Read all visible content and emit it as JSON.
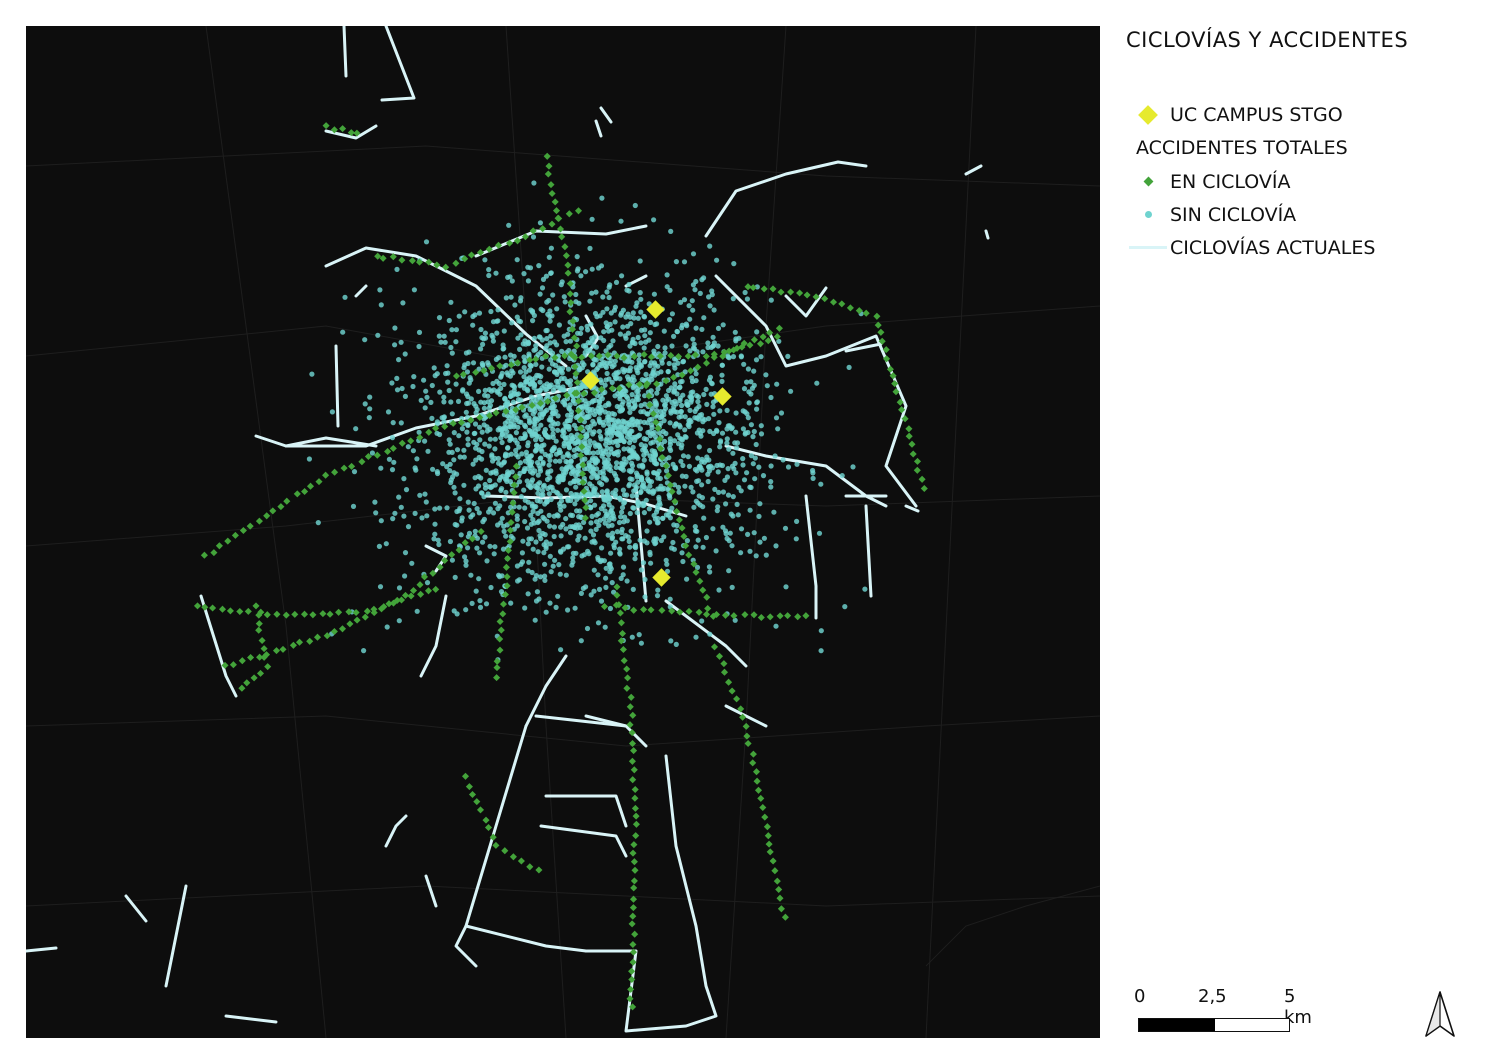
{
  "title": "CICLOVÍAS Y ACCIDENTES",
  "legend": {
    "campus": {
      "label": "UC CAMPUS STGO",
      "color": "#e6ea2e",
      "icon": "yellow-diamond-icon"
    },
    "group_heading": "ACCIDENTES TOTALES",
    "on_bikeway": {
      "label": "EN CICLOVÍA",
      "color": "#43a33a",
      "icon": "green-diamond-icon"
    },
    "off_bikeway": {
      "label": "SIN CICLOVÍA",
      "color": "#6fd3cf",
      "icon": "cyan-dot-icon"
    },
    "bikeways": {
      "label": "CICLOVÍAS ACTUALES",
      "color": "#d9f4f7",
      "icon": "white-line-icon"
    }
  },
  "scale": {
    "labels": [
      "0",
      "2,5",
      "5 km"
    ]
  },
  "north_arrow": {
    "icon": "north-arrow-icon"
  },
  "map": {
    "background": "#0d0d0d"
  }
}
